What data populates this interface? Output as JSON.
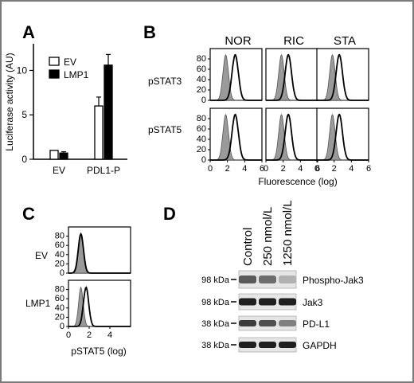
{
  "panel_letters": {
    "a": "A",
    "b": "B",
    "c": "C",
    "d": "D"
  },
  "chart_data": [
    {
      "panel": "A",
      "type": "bar",
      "ylabel": "Luciferase activity (AU)",
      "ylim": [
        0,
        13
      ],
      "y_ticks": [
        "0",
        "5",
        "10"
      ],
      "categories": [
        "EV",
        "PDL1-P"
      ],
      "legend": {
        "placement": "top-left"
      },
      "series": [
        {
          "name": "EV",
          "color": "#ffffff",
          "values": [
            1.0,
            6.0
          ],
          "errors": [
            0.0,
            1.0
          ]
        },
        {
          "name": "LMP1",
          "color": "#000000",
          "values": [
            0.7,
            10.6
          ],
          "errors": [
            0.15,
            1.2
          ]
        }
      ]
    },
    {
      "panel": "B",
      "type": "area",
      "xlabel": "Fluorescence (log)",
      "x_ticks": [
        "0",
        "2",
        "4",
        "6"
      ],
      "y_ticks": [
        "0",
        "20",
        "40",
        "60",
        "80"
      ],
      "columns": [
        "NOR",
        "RIC",
        "STA"
      ],
      "rows": [
        "pSTAT3",
        "pSTAT5"
      ],
      "control_peak_x": 1.8,
      "peaks": {
        "pSTAT3": [
          {
            "x": 2.9,
            "height": 88
          },
          {
            "x": 2.6,
            "height": 88
          },
          {
            "x": 2.6,
            "height": 88
          }
        ],
        "pSTAT5": [
          {
            "x": 2.9,
            "height": 88
          },
          {
            "x": 2.6,
            "height": 88
          },
          {
            "x": 2.6,
            "height": 88
          }
        ]
      }
    },
    {
      "panel": "C",
      "type": "area",
      "xlabel": "pSTAT5 (log)",
      "x_ticks": [
        "0",
        "2",
        "4"
      ],
      "y_ticks": [
        "0",
        "20",
        "40",
        "60",
        "80"
      ],
      "rows": [
        "EV",
        "LMP1"
      ],
      "control_peak_x": 1.2,
      "peaks": [
        {
          "x": 1.2,
          "height": 85
        },
        {
          "x": 1.7,
          "height": 85
        }
      ]
    }
  ],
  "blot": {
    "lanes": [
      "Control",
      "250 nmol/L",
      "1250 nmol/L"
    ],
    "rows": [
      {
        "marker": "98 kDa",
        "protein": "Phospho-Jak3",
        "intensity": [
          0.7,
          0.6,
          0.25
        ]
      },
      {
        "marker": "98 kDa",
        "protein": "Jak3",
        "intensity": [
          1.0,
          1.0,
          1.0
        ]
      },
      {
        "marker": "38 kDa",
        "protein": "PD-L1",
        "intensity": [
          0.85,
          0.75,
          0.5
        ]
      },
      {
        "marker": "38 kDa",
        "protein": "GAPDH",
        "intensity": [
          1.0,
          1.0,
          1.0
        ]
      }
    ]
  }
}
